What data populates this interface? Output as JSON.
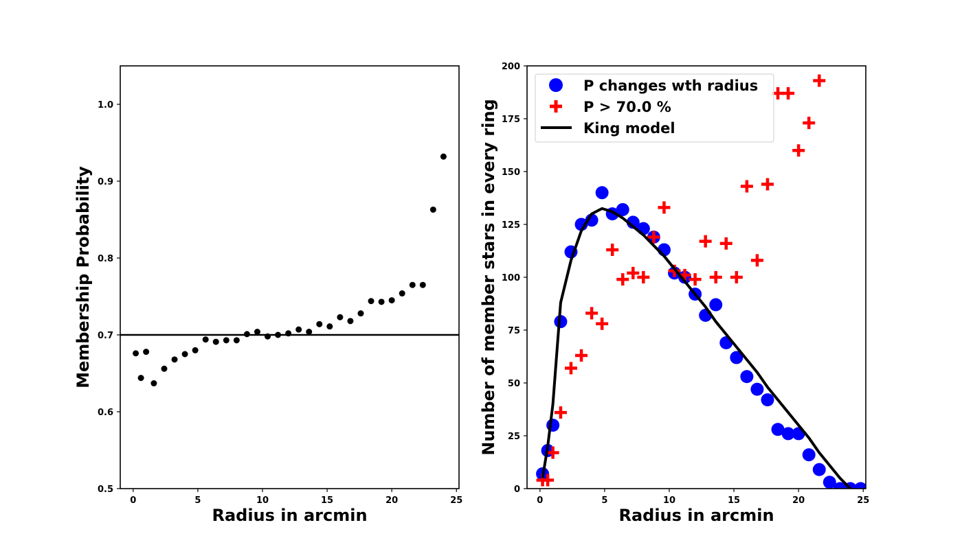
{
  "chart_data": [
    {
      "type": "scatter",
      "xlabel": "Radius in arcmin",
      "ylabel": "Membership Probability",
      "xlim": [
        -1,
        25.2
      ],
      "ylim": [
        0.5,
        1.05
      ],
      "xticks": [
        0,
        5,
        10,
        15,
        20,
        25
      ],
      "yticks": [
        0.5,
        0.6,
        0.7,
        0.8,
        0.9,
        1.0
      ],
      "ytick_labels": [
        "0.5",
        "0.6",
        "0.7",
        "0.8",
        "0.9",
        "1.0"
      ],
      "hline": 0.7,
      "colors": {
        "points": "#000000",
        "line": "#000000"
      },
      "x": [
        0.2,
        0.6,
        1.0,
        1.6,
        2.4,
        3.2,
        4.0,
        4.8,
        5.6,
        6.4,
        7.2,
        8.0,
        8.8,
        9.6,
        10.4,
        11.2,
        12.0,
        12.8,
        13.6,
        14.4,
        15.2,
        16.0,
        16.8,
        17.6,
        18.4,
        19.2,
        20.0,
        20.8,
        21.6,
        22.4,
        23.2,
        24.0
      ],
      "y": [
        0.676,
        0.644,
        0.678,
        0.637,
        0.656,
        0.668,
        0.675,
        0.68,
        0.694,
        0.691,
        0.693,
        0.693,
        0.701,
        0.704,
        0.698,
        0.7,
        0.702,
        0.707,
        0.704,
        0.714,
        0.711,
        0.723,
        0.718,
        0.728,
        0.744,
        0.743,
        0.745,
        0.754,
        0.765,
        0.765,
        0.863,
        0.932
      ]
    },
    {
      "type": "scatter",
      "xlabel": "Radius in arcmin",
      "ylabel": "Number of member stars in every ring",
      "xlim": [
        -1,
        25.2
      ],
      "ylim": [
        0,
        200
      ],
      "xticks": [
        0,
        5,
        10,
        15,
        20,
        25
      ],
      "yticks": [
        0,
        25,
        50,
        75,
        100,
        125,
        150,
        175,
        200
      ],
      "legend_position": "top-left",
      "series": [
        {
          "name": "P changes wth radius",
          "marker": "circle",
          "color": "#0000ff",
          "x": [
            0.2,
            0.6,
            1.0,
            1.6,
            2.4,
            3.2,
            4.0,
            4.8,
            5.6,
            6.4,
            7.2,
            8.0,
            8.8,
            9.6,
            10.4,
            11.2,
            12.0,
            12.8,
            13.6,
            14.4,
            15.2,
            16.0,
            16.8,
            17.6,
            18.4,
            19.2,
            20.0,
            20.8,
            21.6,
            22.4,
            23.2,
            24.0,
            24.8
          ],
          "y": [
            7,
            18,
            30,
            79,
            112,
            125,
            127,
            140,
            130,
            132,
            126,
            123,
            119,
            113,
            102,
            100,
            92,
            82,
            87,
            69,
            62,
            53,
            47,
            42,
            28,
            26,
            26,
            16,
            9,
            3,
            0,
            0,
            0
          ]
        },
        {
          "name": "P > 70.0 %",
          "marker": "plus",
          "color": "#ff0000",
          "x": [
            0.2,
            0.6,
            1.0,
            1.6,
            2.4,
            3.2,
            4.0,
            4.8,
            5.6,
            6.4,
            7.2,
            8.0,
            8.8,
            9.6,
            10.4,
            11.2,
            12.0,
            12.8,
            13.6,
            14.4,
            15.2,
            16.0,
            16.8,
            17.6,
            18.4,
            19.2,
            20.0,
            20.8,
            21.6
          ],
          "y": [
            4,
            4,
            17,
            36,
            57,
            63,
            83,
            78,
            113,
            99,
            102,
            100,
            119,
            133,
            103,
            101,
            99,
            117,
            100,
            116,
            100,
            143,
            108,
            144,
            187,
            187,
            160,
            173,
            193
          ]
        },
        {
          "name": "King model",
          "marker": "line",
          "color": "#000000",
          "x": [
            0.2,
            0.6,
            1.0,
            1.6,
            2.4,
            3.2,
            4.0,
            4.8,
            5.6,
            6.4,
            7.2,
            8.0,
            8.8,
            9.6,
            10.4,
            11.2,
            12.0,
            12.8,
            13.6,
            14.4,
            15.2,
            16.0,
            16.8,
            17.6,
            18.4,
            19.2,
            20.0,
            20.8,
            21.6,
            22.4,
            23.2,
            24.0
          ],
          "y": [
            5,
            20,
            40,
            88,
            108,
            122,
            130,
            132.5,
            131,
            128,
            124,
            120,
            115,
            110,
            104,
            98,
            92,
            86,
            79,
            73,
            67,
            61,
            55,
            48,
            42,
            36,
            30,
            24,
            17,
            11,
            5,
            0
          ]
        }
      ]
    }
  ]
}
